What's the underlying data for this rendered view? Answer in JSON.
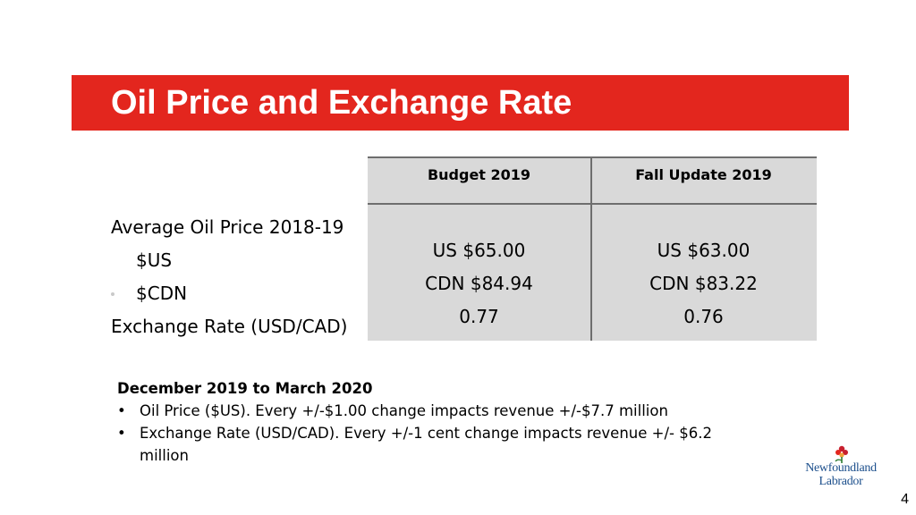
{
  "slide": {
    "title": "Oil Price and Exchange Rate",
    "page_number": "4"
  },
  "row_labels": {
    "oil_price": "Average Oil Price 2018-19",
    "us": "$US",
    "cdn": "$CDN",
    "exchange": "Exchange Rate (USD/CAD)"
  },
  "table": {
    "columns": [
      {
        "header": "Budget 2019",
        "us": "US $65.00",
        "cdn": "CDN $84.94",
        "rate": "0.77"
      },
      {
        "header": "Fall Update 2019",
        "us": "US $63.00",
        "cdn": "CDN $83.22",
        "rate": "0.76"
      }
    ]
  },
  "notes": {
    "heading": "December 2019 to March 2020",
    "bullets": [
      "Oil Price ($US).  Every +/-$1.00 change impacts revenue +/-$7.7 million",
      "Exchange Rate (USD/CAD).  Every +/-1 cent change impacts revenue +/- $6.2 million"
    ],
    "bullet_symbol": "•"
  },
  "logo": {
    "line1": "Newfoundland",
    "line2": "Labrador"
  },
  "colors": {
    "title_bar": "#e3261e",
    "table_bg": "#d9d9d9",
    "logo_text": "#1c4f8c"
  }
}
